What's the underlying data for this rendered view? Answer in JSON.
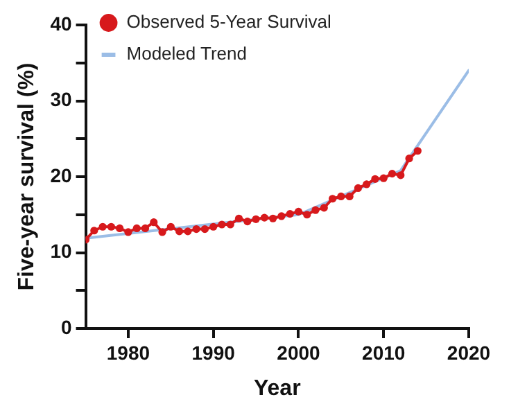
{
  "chart_data": {
    "type": "line",
    "xlabel": "Year",
    "ylabel": "Five-year survival (%)",
    "xlim": [
      1975,
      2020
    ],
    "xticks": [
      1980,
      1990,
      2000,
      2010,
      2020
    ],
    "ylim": [
      0,
      40
    ],
    "yticks": [
      0,
      {
        "value": 5,
        "label": null
      },
      10,
      {
        "value": 15,
        "label": null
      },
      20,
      {
        "value": 25,
        "label": null
      },
      30,
      {
        "value": 35,
        "label": null
      },
      40
    ],
    "grid": false,
    "legend": "top left",
    "series": [
      {
        "name": "Observed 5-Year Survival",
        "color": "#d7191c",
        "marker": "circle",
        "x": [
          1975,
          1976,
          1977,
          1978,
          1979,
          1980,
          1981,
          1982,
          1983,
          1984,
          1985,
          1986,
          1987,
          1988,
          1989,
          1990,
          1991,
          1992,
          1993,
          1994,
          1995,
          1996,
          1997,
          1998,
          1999,
          2000,
          2001,
          2002,
          2003,
          2004,
          2005,
          2006,
          2007,
          2008,
          2009,
          2010,
          2011,
          2012,
          2013,
          2014
        ],
        "values": [
          11.7,
          12.9,
          13.4,
          13.4,
          13.2,
          12.7,
          13.2,
          13.2,
          14.0,
          12.7,
          13.4,
          12.8,
          12.8,
          13.1,
          13.1,
          13.4,
          13.7,
          13.7,
          14.5,
          14.1,
          14.4,
          14.6,
          14.5,
          14.8,
          15.1,
          15.4,
          15.0,
          15.6,
          15.9,
          17.1,
          17.4,
          17.4,
          18.5,
          19.0,
          19.7,
          19.8,
          20.4,
          20.2,
          22.4,
          23.4
        ]
      },
      {
        "name": "Modeled Trend",
        "color": "#9bbde6",
        "marker": "none",
        "x": [
          1975,
          2000,
          2012,
          2020
        ],
        "values": [
          11.9,
          15.0,
          20.8,
          34.0
        ]
      }
    ]
  }
}
